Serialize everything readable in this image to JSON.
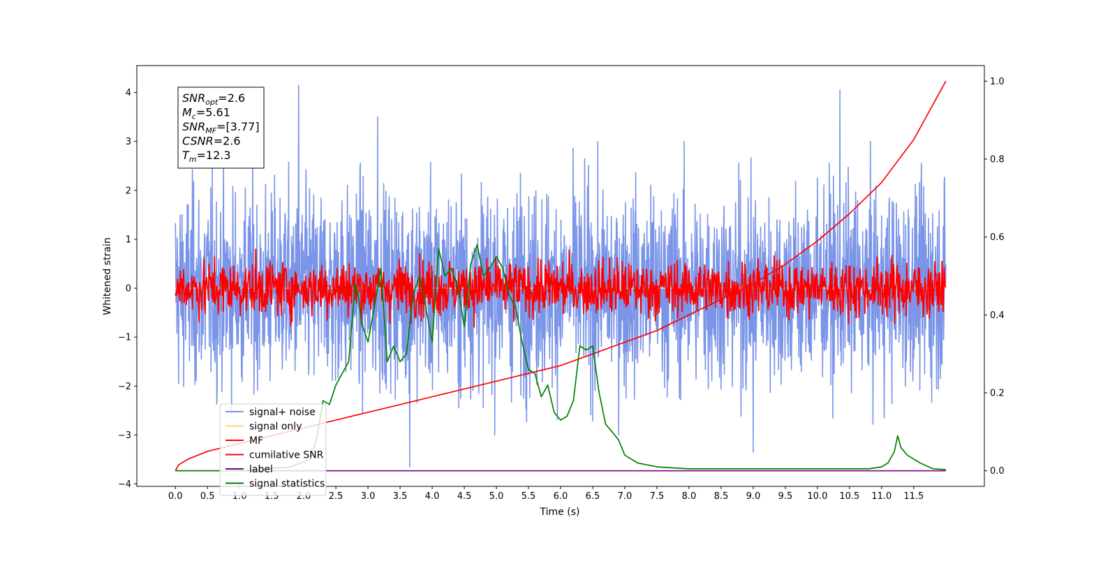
{
  "chart_data": {
    "type": "line",
    "title": "",
    "xlabel": "Time (s)",
    "ylabel": "Whitened strain",
    "xlim": [
      -0.6,
      12.6
    ],
    "ylim": [
      -4.05,
      4.55
    ],
    "y2lim": [
      -0.04,
      1.04
    ],
    "x_ticks": [
      "0.0",
      "0.5",
      "1.0",
      "1.5",
      "2.0",
      "2.5",
      "3.0",
      "3.5",
      "4.0",
      "4.5",
      "5.0",
      "5.5",
      "6.0",
      "6.5",
      "7.0",
      "7.5",
      "8.0",
      "8.5",
      "9.0",
      "9.5",
      "10.0",
      "10.5",
      "11.0",
      "11.5"
    ],
    "y_ticks": [
      "4",
      "3",
      "2",
      "1",
      "0",
      "−1",
      "−2",
      "−3",
      "−4"
    ],
    "y2_ticks": [
      "1.0",
      "0.8",
      "0.6",
      "0.4",
      "0.2",
      "0.0"
    ],
    "legend_position": "lower-left",
    "stats_box": {
      "lines": [
        {
          "label": "SNR",
          "sub": "opt",
          "value": "=2.6"
        },
        {
          "label": "M",
          "sub": "c",
          "value": "=5.61"
        },
        {
          "label": "SNR",
          "sub": "MF",
          "value": "=[3.77]"
        },
        {
          "label": "CSNR",
          "sub": "",
          "value": "=2.6"
        },
        {
          "label": "T",
          "sub": "m",
          "value": "=12.3"
        }
      ]
    },
    "series": [
      {
        "name": "signal+ noise",
        "color": "#7a94e8",
        "axis": "left",
        "kind": "noise",
        "x_range": [
          0,
          12
        ],
        "amplitude_sd": 1.0,
        "spikes": [
          [
            1.92,
            4.15
          ],
          [
            3.65,
            -3.65
          ],
          [
            10.35,
            4.05
          ],
          [
            3.15,
            3.5
          ],
          [
            9.0,
            -3.35
          ]
        ]
      },
      {
        "name": "signal only",
        "color": "#ffd27a",
        "axis": "left",
        "kind": "flat",
        "x_range": [
          0,
          12
        ],
        "value": 0.0
      },
      {
        "name": "MF",
        "color": "#ff0000",
        "axis": "left",
        "kind": "noise",
        "x_range": [
          0,
          12
        ],
        "amplitude_sd": 0.28
      },
      {
        "name": "cumilative SNR",
        "color": "#ff0000",
        "axis": "right",
        "x": [
          0,
          0.05,
          0.2,
          0.5,
          1.0,
          1.5,
          2.0,
          2.5,
          3.0,
          3.5,
          4.0,
          4.5,
          5.0,
          5.5,
          6.0,
          6.5,
          7.0,
          7.5,
          8.0,
          8.5,
          9.0,
          9.5,
          10.0,
          10.5,
          11.0,
          11.5,
          12.0
        ],
        "y": [
          0.0,
          0.015,
          0.03,
          0.05,
          0.07,
          0.09,
          0.11,
          0.13,
          0.15,
          0.17,
          0.19,
          0.21,
          0.23,
          0.25,
          0.27,
          0.3,
          0.33,
          0.36,
          0.4,
          0.44,
          0.48,
          0.53,
          0.59,
          0.66,
          0.74,
          0.85,
          1.0
        ]
      },
      {
        "name": "label",
        "color": "#800080",
        "axis": "right",
        "x": [
          0,
          12
        ],
        "y": [
          0.0,
          0.0
        ]
      },
      {
        "name": "signal statistics",
        "color": "#008000",
        "axis": "right",
        "x": [
          0,
          1.0,
          1.8,
          2.1,
          2.2,
          2.3,
          2.4,
          2.5,
          2.6,
          2.7,
          2.8,
          2.85,
          2.9,
          3.0,
          3.1,
          3.2,
          3.3,
          3.4,
          3.5,
          3.6,
          3.7,
          3.8,
          3.9,
          4.0,
          4.1,
          4.2,
          4.3,
          4.4,
          4.5,
          4.6,
          4.7,
          4.8,
          4.9,
          5.0,
          5.1,
          5.2,
          5.3,
          5.4,
          5.5,
          5.6,
          5.7,
          5.8,
          5.9,
          6.0,
          6.1,
          6.2,
          6.3,
          6.4,
          6.5,
          6.6,
          6.7,
          6.8,
          6.9,
          7.0,
          7.2,
          7.5,
          8.0,
          9.0,
          9.5,
          10.0,
          10.5,
          10.8,
          11.0,
          11.1,
          11.2,
          11.25,
          11.3,
          11.4,
          11.6,
          11.8,
          12.0
        ],
        "y": [
          0.0,
          0.0,
          0.01,
          0.03,
          0.08,
          0.18,
          0.17,
          0.22,
          0.25,
          0.28,
          0.48,
          0.45,
          0.38,
          0.33,
          0.42,
          0.52,
          0.28,
          0.32,
          0.28,
          0.3,
          0.45,
          0.5,
          0.42,
          0.33,
          0.57,
          0.5,
          0.52,
          0.47,
          0.37,
          0.53,
          0.58,
          0.5,
          0.52,
          0.55,
          0.52,
          0.45,
          0.42,
          0.33,
          0.26,
          0.25,
          0.19,
          0.22,
          0.15,
          0.13,
          0.14,
          0.18,
          0.32,
          0.31,
          0.32,
          0.2,
          0.12,
          0.1,
          0.08,
          0.04,
          0.02,
          0.01,
          0.005,
          0.005,
          0.005,
          0.005,
          0.005,
          0.005,
          0.01,
          0.02,
          0.05,
          0.09,
          0.06,
          0.04,
          0.02,
          0.005,
          0.003
        ]
      }
    ]
  }
}
